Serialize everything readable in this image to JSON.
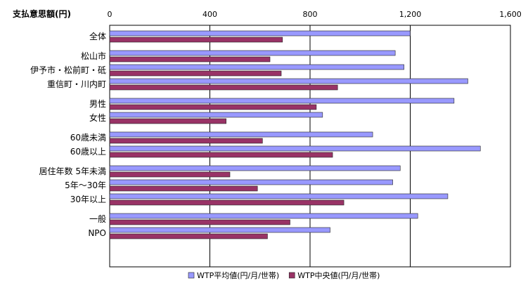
{
  "chart_data": {
    "type": "bar",
    "orientation": "horizontal",
    "title": "",
    "ylabel": "支払意思額(円)",
    "xlabel": "",
    "xlim": [
      0,
      1600
    ],
    "xticks": [
      "0",
      "400",
      "800",
      "1,200",
      "1,600"
    ],
    "grid": true,
    "legend_position": "bottom",
    "categories": [
      {
        "label": "全体",
        "value_index": 0
      },
      {
        "label": "松山市",
        "value_index": 1
      },
      {
        "label": "伊予市・松前町・砥",
        "value_index": 2
      },
      {
        "label": "重信町・川内町",
        "value_index": 3
      },
      {
        "label": "男性",
        "value_index": 4
      },
      {
        "label": "女性",
        "value_index": 5
      },
      {
        "label": "60歳未満",
        "value_index": 6
      },
      {
        "label": "60歳以上",
        "value_index": 7
      },
      {
        "label": "居住年数 5年未満",
        "value_index": 8
      },
      {
        "label": "5年～30年",
        "value_index": 9
      },
      {
        "label": "30年以上",
        "value_index": 10
      },
      {
        "label": "一般",
        "value_index": 11
      },
      {
        "label": "NPO",
        "value_index": 12
      }
    ],
    "groups": [
      [
        0
      ],
      [
        1,
        2,
        3
      ],
      [
        4,
        5
      ],
      [
        6,
        7
      ],
      [
        8,
        9,
        10
      ],
      [
        11,
        12
      ]
    ],
    "series": [
      {
        "name": "WTP平均値(円/月/世帯)",
        "color": "#9999ff",
        "values": [
          1200,
          1140,
          1175,
          1430,
          1375,
          850,
          1050,
          1480,
          1160,
          1130,
          1350,
          1230,
          880
        ]
      },
      {
        "name": "WTP中央値(円/月/世帯)",
        "color": "#993366",
        "values": [
          690,
          640,
          685,
          910,
          825,
          465,
          610,
          890,
          480,
          590,
          935,
          720,
          630
        ]
      }
    ]
  }
}
